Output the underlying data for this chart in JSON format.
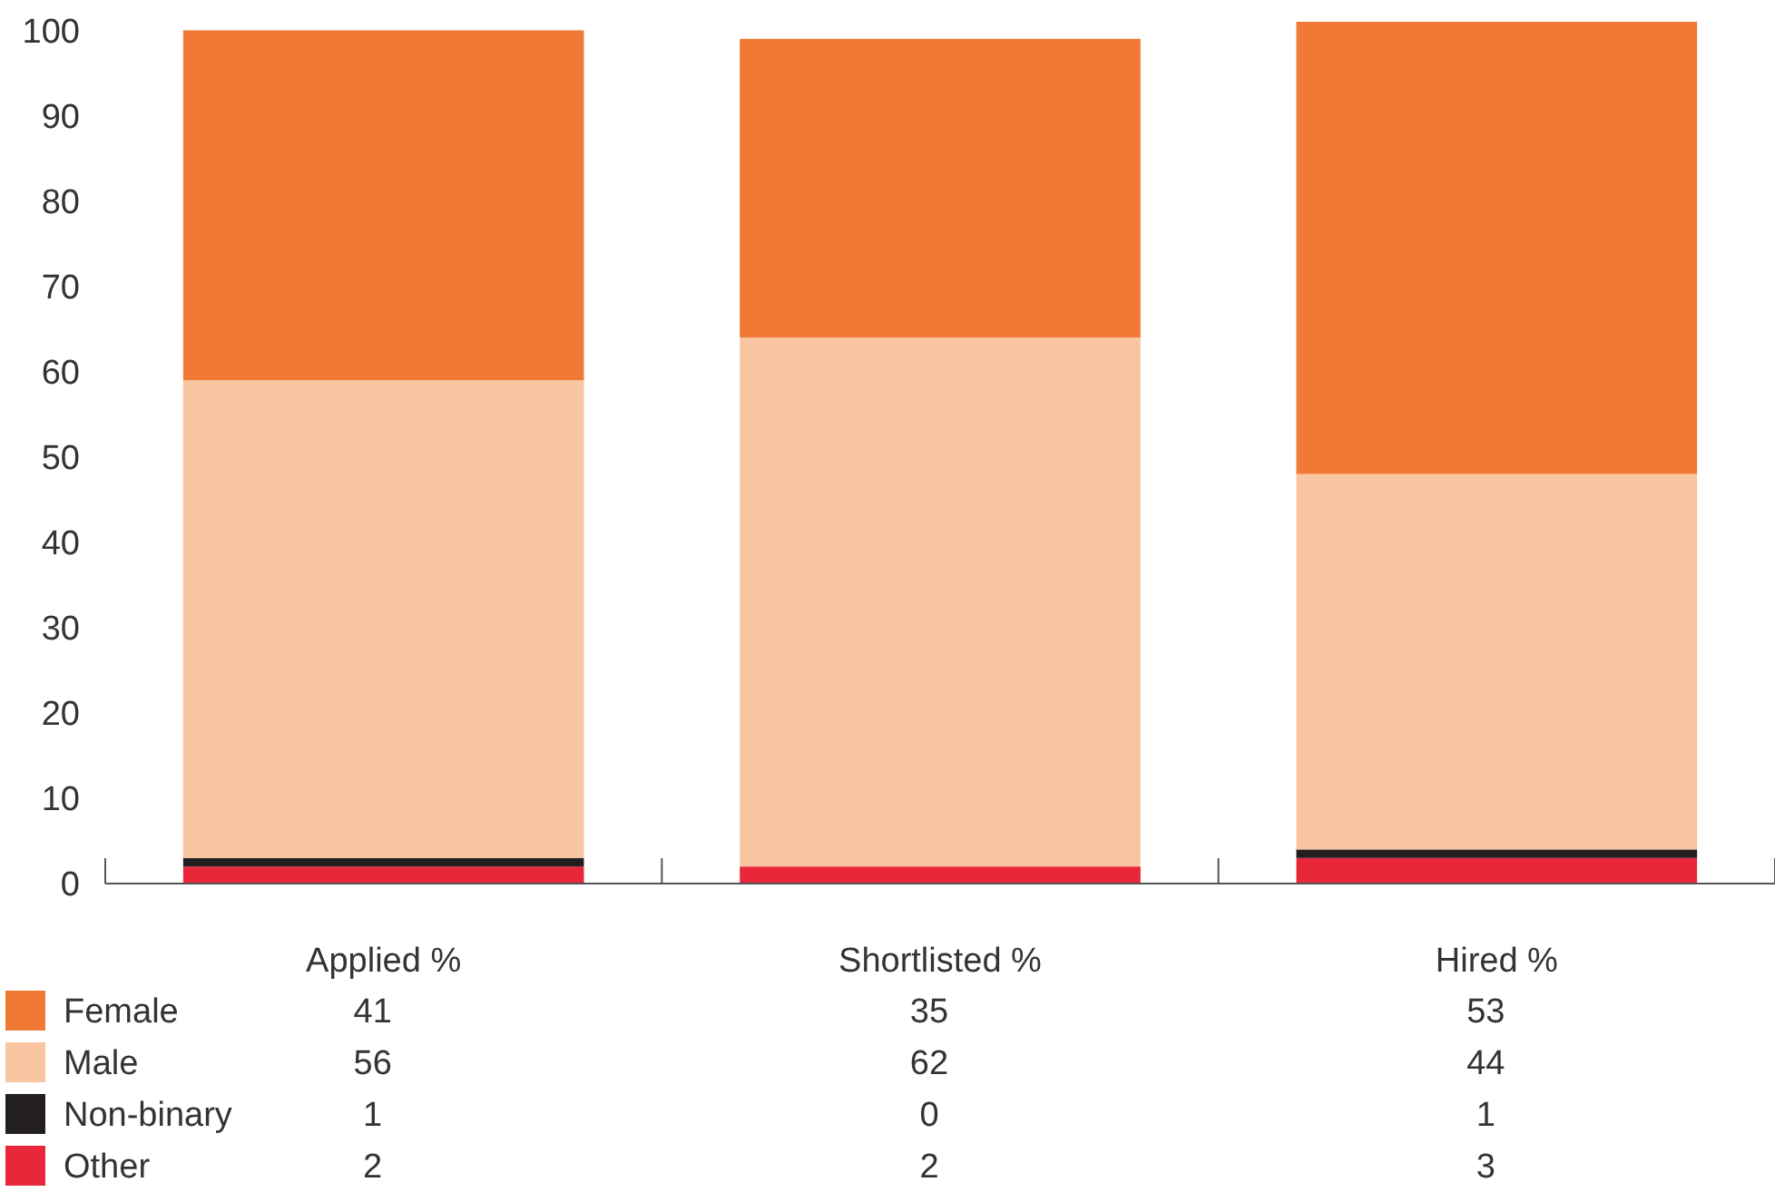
{
  "chart_data": {
    "type": "bar",
    "stacked": true,
    "categories": [
      "Applied %",
      "Shortlisted %",
      "Hired %"
    ],
    "series": [
      {
        "name": "Other",
        "color": "#e8273a",
        "values": [
          2,
          2,
          3
        ]
      },
      {
        "name": "Non-binary",
        "color": "#231f20",
        "values": [
          1,
          0,
          1
        ]
      },
      {
        "name": "Male",
        "color": "#f9c5a0",
        "values": [
          56,
          62,
          44
        ]
      },
      {
        "name": "Female",
        "color": "#f07a35",
        "values": [
          41,
          35,
          53
        ]
      }
    ],
    "ylim": [
      0,
      101
    ],
    "yticks": [
      0,
      10,
      20,
      30,
      40,
      50,
      60,
      70,
      80,
      90,
      100
    ],
    "grid": false,
    "legend": "bottom",
    "data_labels": true
  }
}
